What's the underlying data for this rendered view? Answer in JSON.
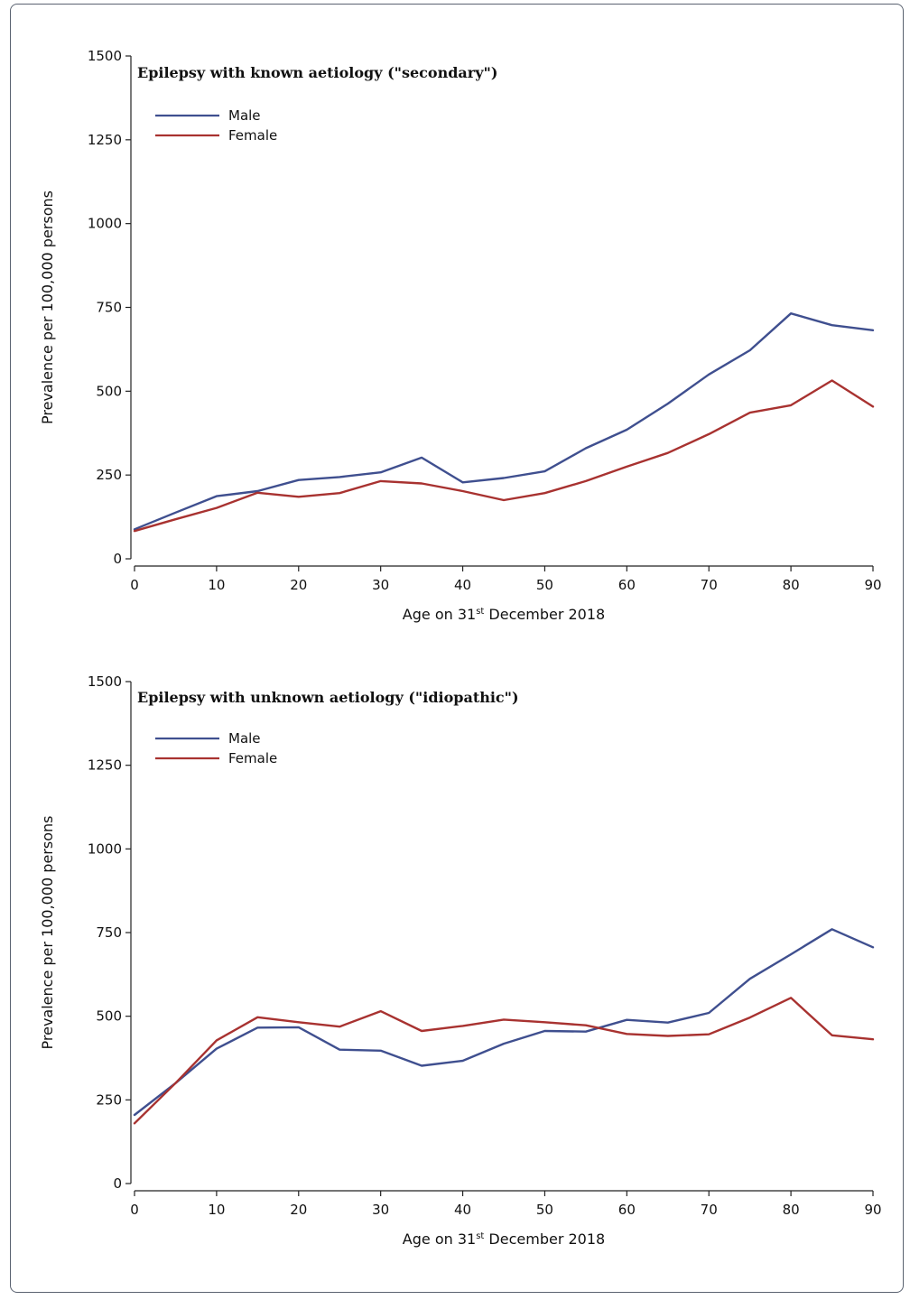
{
  "chart_data": [
    {
      "type": "line",
      "title": "Epilepsy with known aetiology (\"secondary\")",
      "xlabel_pre": "Age on 31",
      "xlabel_sup": "st",
      "xlabel_post": " December 2018",
      "ylabel": "Prevalence per 100,000 persons",
      "xlim": [
        0,
        90
      ],
      "ylim": [
        0,
        1500
      ],
      "x_ticks": [
        0,
        10,
        20,
        30,
        40,
        50,
        60,
        70,
        80,
        90
      ],
      "y_ticks": [
        0,
        250,
        500,
        750,
        1000,
        1250,
        1500
      ],
      "legend_position": "top-left",
      "x": [
        0,
        5,
        10,
        15,
        20,
        25,
        30,
        35,
        40,
        45,
        50,
        55,
        60,
        65,
        70,
        75,
        80,
        85,
        90
      ],
      "series": [
        {
          "name": "Male",
          "color": "#3f4f8f",
          "values": [
            88,
            138,
            187,
            202,
            235,
            244,
            258,
            302,
            228,
            241,
            261,
            330,
            385,
            463,
            550,
            622,
            732,
            697,
            682
          ]
        },
        {
          "name": "Female",
          "color": "#a83230",
          "values": [
            83,
            118,
            152,
            197,
            185,
            196,
            232,
            225,
            202,
            175,
            196,
            232,
            275,
            316,
            372,
            436,
            458,
            532,
            454
          ]
        }
      ]
    },
    {
      "type": "line",
      "title": "Epilepsy with unknown aetiology (\"idiopathic\")",
      "xlabel_pre": "Age on 31",
      "xlabel_sup": "st",
      "xlabel_post": " December 2018",
      "ylabel": "Prevalence per 100,000 persons",
      "xlim": [
        0,
        90
      ],
      "ylim": [
        0,
        1500
      ],
      "x_ticks": [
        0,
        10,
        20,
        30,
        40,
        50,
        60,
        70,
        80,
        90
      ],
      "y_ticks": [
        0,
        250,
        500,
        750,
        1000,
        1250,
        1500
      ],
      "legend_position": "top-left",
      "x": [
        0,
        5,
        10,
        15,
        20,
        25,
        30,
        35,
        40,
        45,
        50,
        55,
        60,
        65,
        70,
        75,
        80,
        85,
        90
      ],
      "series": [
        {
          "name": "Male",
          "color": "#3f4f8f",
          "values": [
            205,
            300,
            403,
            466,
            467,
            400,
            397,
            352,
            367,
            418,
            456,
            454,
            489,
            481,
            510,
            612,
            685,
            760,
            706
          ]
        },
        {
          "name": "Female",
          "color": "#a83230",
          "values": [
            180,
            300,
            428,
            497,
            482,
            469,
            515,
            456,
            471,
            490,
            482,
            473,
            447,
            441,
            446,
            496,
            555,
            443,
            431
          ]
        }
      ]
    }
  ]
}
